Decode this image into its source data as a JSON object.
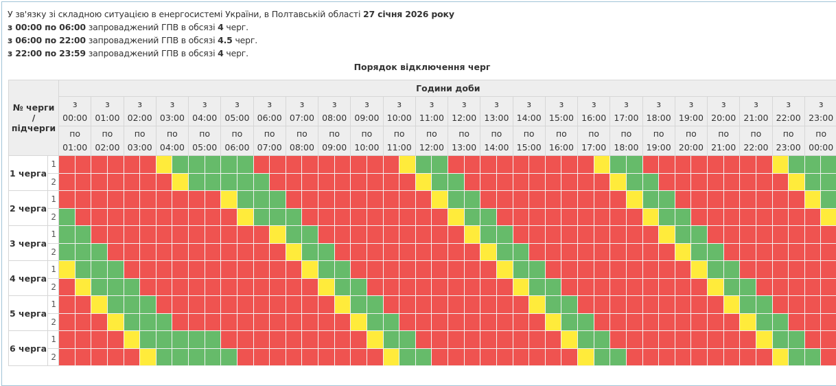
{
  "intro": {
    "line0": {
      "text": "У зв'язку зі складною ситуацією в енергосистемі України, в Полтавській області ",
      "date": "27 січня 2026 року"
    },
    "lines": [
      {
        "period": "з 00:00 по 06:00",
        "text": " запроваджений ГПВ в обсязі ",
        "amount": "4",
        "suffix": " черг."
      },
      {
        "period": "з 06:00 по 22:00",
        "text": " запроваджений ГПВ в обсязі ",
        "amount": "4.5",
        "suffix": " черг."
      },
      {
        "period": "з 22:00 по 23:59",
        "text": " запроваджений ГПВ в обсязі ",
        "amount": "4",
        "suffix": " черг."
      }
    ]
  },
  "caption": "Порядок відключення черг",
  "table": {
    "corner_line1": "№ черги",
    "corner_line2": "/",
    "corner_line3": "підчерги",
    "hours_header": "Години доби",
    "from_prefix": "з",
    "to_prefix": "по",
    "from": [
      "00:00",
      "01:00",
      "02:00",
      "03:00",
      "04:00",
      "05:00",
      "06:00",
      "07:00",
      "08:00",
      "09:00",
      "10:00",
      "11:00",
      "12:00",
      "13:00",
      "14:00",
      "15:00",
      "16:00",
      "17:00",
      "18:00",
      "19:00",
      "20:00",
      "21:00",
      "22:00",
      "23:00"
    ],
    "to": [
      "01:00",
      "02:00",
      "03:00",
      "04:00",
      "05:00",
      "06:00",
      "07:00",
      "08:00",
      "09:00",
      "10:00",
      "11:00",
      "12:00",
      "13:00",
      "14:00",
      "15:00",
      "16:00",
      "17:00",
      "18:00",
      "19:00",
      "20:00",
      "21:00",
      "22:00",
      "23:00",
      "00:00"
    ],
    "legend_codes": {
      "R": "off",
      "G": "on",
      "Y": "possible"
    },
    "colors": {
      "R": "#ef5350",
      "G": "#66bb6a",
      "Y": "#ffeb3b"
    },
    "queues": [
      {
        "label": "1 черга",
        "subs": [
          {
            "n": "1",
            "cells": "RRRRRRYGGGGGRRRRRRRRRYGGRRRRRRRRRYGGRRRRRRRRYGGG"
          },
          {
            "n": "2",
            "cells": "RRRRRRRYGGGGGRRRRRRRRRYGGRRRRRRRRRYGGRRRRRRRRYGG"
          }
        ]
      },
      {
        "label": "2 черга",
        "subs": [
          {
            "n": "1",
            "cells": "RRRRRRRRRRYGGGRRRRRRRRRYGGRRRRRRRRRYGGRRRRRRRRYG"
          },
          {
            "n": "2",
            "cells": "GRRRRRRRRRRYGGGRRRRRRRRRYGGRRRRRRRRRYGGRRRRRRRRY"
          }
        ]
      },
      {
        "label": "3 черга",
        "subs": [
          {
            "n": "1",
            "cells": "GGRRRRRRRRRRRYGGRRRRRRRRRYGGRRRRRRRRRYGGRRRRRRRR"
          },
          {
            "n": "2",
            "cells": "GGGRRRRRRRRRRRYGGRRRRRRRRRYGGRRRRRRRRRYGGRRRRRRR"
          }
        ]
      },
      {
        "label": "4 черга",
        "subs": [
          {
            "n": "1",
            "cells": "YGGGRRRRRRRRRRRYGGRRRRRRRRRYGGRRRRRRRRRYGGRRRRRR"
          },
          {
            "n": "2",
            "cells": "RYGGGRRRRRRRRRRRYGGRRRRRRRRRYGGRRRRRRRRRYGGRRRRR"
          }
        ]
      },
      {
        "label": "5 черга",
        "subs": [
          {
            "n": "1",
            "cells": "RRYGGGRRRRRRRRRRRYGGRRRRRRRRRYGGRRRRRRRRRYGGRRRR"
          },
          {
            "n": "2",
            "cells": "RRRYGGGRRRRRRRRRRRYGGRRRRRRRRRYGGRRRRRRRRRYGGRRR"
          }
        ]
      },
      {
        "label": "6 черга",
        "subs": [
          {
            "n": "1",
            "cells": "RRRRYGGGGGRRRRRRRRRYGGRRRRRRRRRYGGRRRRRRRRRYGGRR"
          },
          {
            "n": "2",
            "cells": "RRRRRYGGGGGRRRRRRRRRYGGRRRRRRRRRYGGRRRRRRRRRYGGR"
          }
        ]
      }
    ]
  }
}
